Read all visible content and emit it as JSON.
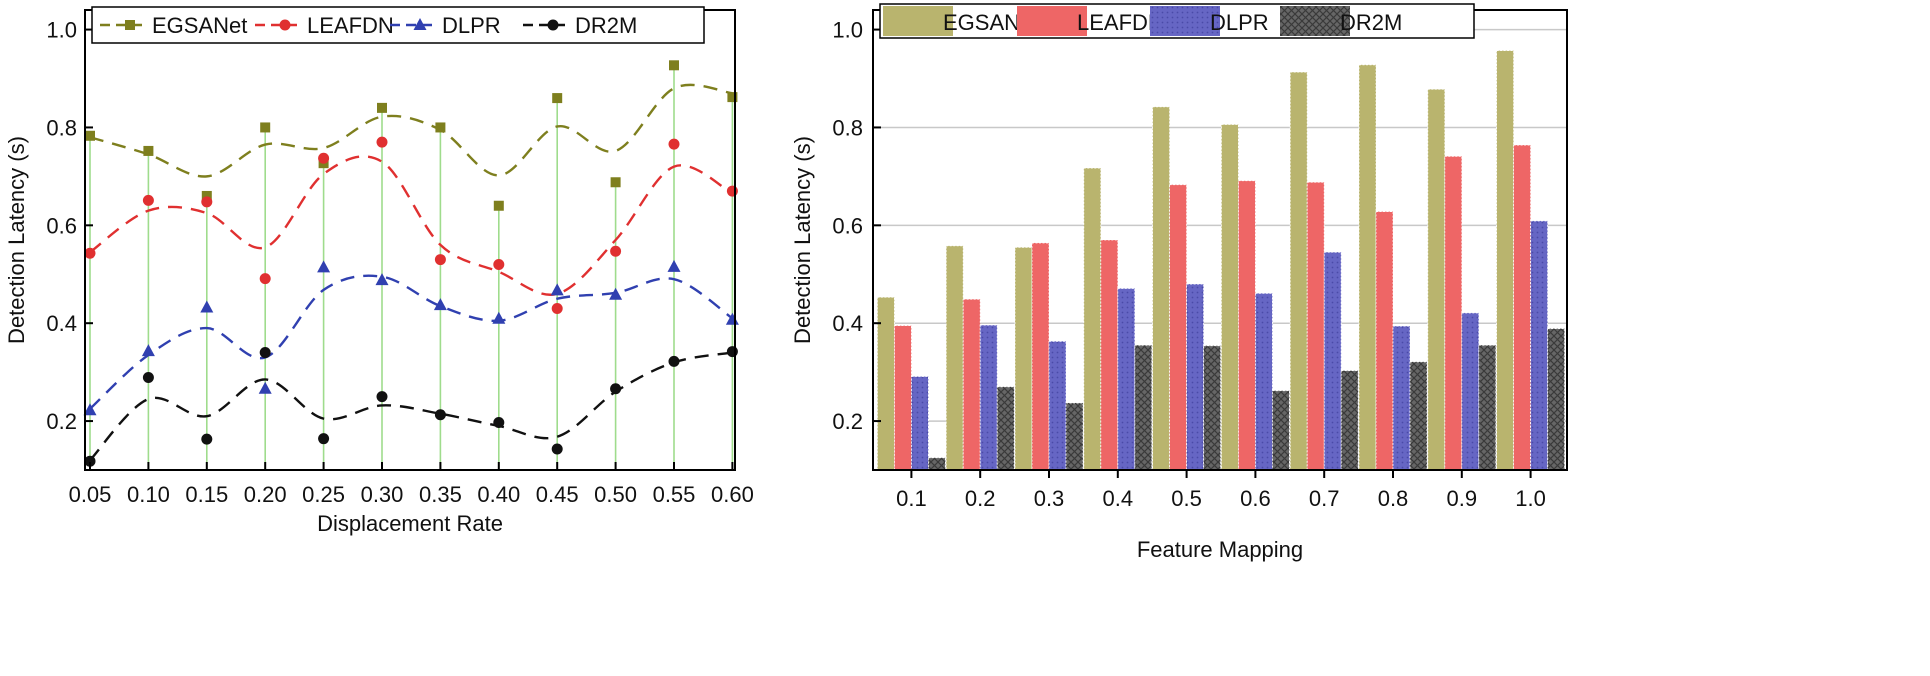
{
  "chart_data": [
    {
      "type": "line",
      "xlabel": "Displacement Rate",
      "ylabel": "Detection Latency (s)",
      "x": [
        0.05,
        0.1,
        0.15,
        0.2,
        0.25,
        0.3,
        0.35,
        0.4,
        0.45,
        0.5,
        0.55,
        0.6
      ],
      "x_tick_labels": [
        "0.05",
        "0.10",
        "0.15",
        "0.20",
        "0.25",
        "0.30",
        "0.35",
        "0.40",
        "0.45",
        "0.50",
        "0.55",
        "0.60"
      ],
      "y_ticks": [
        0.2,
        0.4,
        0.6,
        0.8,
        1.0
      ],
      "y_tick_labels": [
        "0.2",
        "0.4",
        "0.6",
        "0.8",
        "1.0"
      ],
      "ylim": [
        0.1,
        1.04
      ],
      "legend_position": "top",
      "grid": false,
      "drop_lines_color": "#9fdc8c",
      "series": [
        {
          "name": "EGSANet",
          "color": "#7e7f1e",
          "marker": "square",
          "values": [
            0.783,
            0.752,
            0.66,
            0.8,
            0.727,
            0.84,
            0.8,
            0.64,
            0.86,
            0.688,
            0.927,
            0.862
          ],
          "smooth": [
            0.78,
            0.745,
            0.7,
            0.765,
            0.758,
            0.822,
            0.795,
            0.702,
            0.802,
            0.752,
            0.88,
            0.87
          ]
        },
        {
          "name": "LEAFDN",
          "color": "#e03030",
          "marker": "circle",
          "values": [
            0.543,
            0.651,
            0.648,
            0.491,
            0.737,
            0.77,
            0.53,
            0.52,
            0.43,
            0.547,
            0.766,
            0.67
          ],
          "smooth": [
            0.545,
            0.63,
            0.625,
            0.555,
            0.705,
            0.73,
            0.56,
            0.505,
            0.46,
            0.57,
            0.72,
            0.665
          ]
        },
        {
          "name": "DLPR",
          "color": "#3040b0",
          "marker": "triangle",
          "values": [
            0.222,
            0.343,
            0.432,
            0.266,
            0.514,
            0.488,
            0.437,
            0.409,
            0.467,
            0.458,
            0.515,
            0.407
          ],
          "smooth": [
            0.225,
            0.335,
            0.39,
            0.33,
            0.468,
            0.495,
            0.435,
            0.405,
            0.45,
            0.462,
            0.49,
            0.41
          ]
        },
        {
          "name": "DR2M",
          "color": "#111111",
          "marker": "circle",
          "values": [
            0.118,
            0.289,
            0.163,
            0.34,
            0.164,
            0.25,
            0.213,
            0.197,
            0.143,
            0.266,
            0.322,
            0.342
          ],
          "smooth": [
            0.12,
            0.245,
            0.21,
            0.285,
            0.205,
            0.232,
            0.215,
            0.19,
            0.168,
            0.26,
            0.32,
            0.34
          ]
        }
      ]
    },
    {
      "type": "bar",
      "xlabel": "Feature Mapping",
      "ylabel": "Detection Latency (s)",
      "categories": [
        "0.1",
        "0.2",
        "0.3",
        "0.4",
        "0.5",
        "0.6",
        "0.7",
        "0.8",
        "0.9",
        "1.0"
      ],
      "y_ticks": [
        0.2,
        0.4,
        0.6,
        0.8,
        1.0
      ],
      "y_tick_labels": [
        "0.2",
        "0.4",
        "0.6",
        "0.8",
        "1.0"
      ],
      "ylim": [
        0.1,
        1.04
      ],
      "legend_position": "top",
      "grid": true,
      "series": [
        {
          "name": "EGSANet",
          "color": "#b9b46e",
          "pattern": "none",
          "values": [
            0.453,
            0.558,
            0.555,
            0.717,
            0.842,
            0.806,
            0.913,
            0.928,
            0.878,
            0.957
          ]
        },
        {
          "name": "LEAFDN",
          "color": "#ee6666",
          "pattern": "none",
          "values": [
            0.395,
            0.449,
            0.564,
            0.57,
            0.683,
            0.691,
            0.688,
            0.628,
            0.741,
            0.764
          ]
        },
        {
          "name": "DLPR",
          "color": "#6666c4",
          "pattern": "dots",
          "values": [
            0.291,
            0.396,
            0.363,
            0.471,
            0.48,
            0.461,
            0.545,
            0.394,
            0.421,
            0.609
          ]
        },
        {
          "name": "DR2M",
          "color": "#666666",
          "pattern": "crosshatch",
          "values": [
            0.125,
            0.27,
            0.237,
            0.355,
            0.354,
            0.262,
            0.303,
            0.321,
            0.355,
            0.389
          ]
        }
      ]
    }
  ]
}
